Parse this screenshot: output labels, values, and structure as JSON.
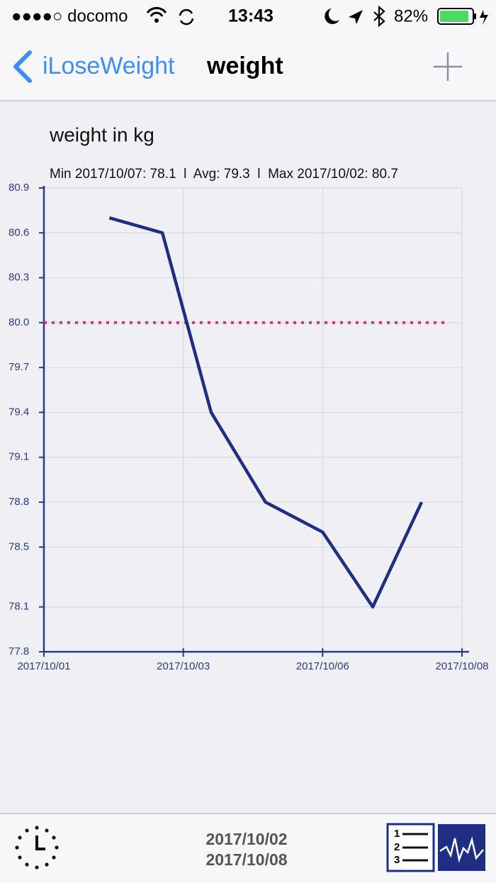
{
  "status_bar": {
    "carrier": "●●●●○ docomo",
    "time": "13:43",
    "battery": "82%"
  },
  "nav": {
    "back": "iLoseWeight",
    "title": "weight"
  },
  "chart_data": {
    "type": "line",
    "title": "weight in kg",
    "subtitle": "Min 2017/10/07: 78.1  l  Avg: 79.3  l  Max 2017/10/02: 80.7",
    "x": [
      0.47,
      0.85,
      1.2,
      1.59,
      2.0,
      2.36,
      2.71
    ],
    "series": [
      {
        "color": "#1f2d82",
        "values": [
          80.7,
          80.6,
          79.4,
          78.8,
          78.6,
          78.1,
          78.8
        ]
      }
    ],
    "xlim": [
      0,
      3
    ],
    "xticks": [
      {
        "value": 0,
        "label": "2017/10/01"
      },
      {
        "value": 1,
        "label": "2017/10/03"
      },
      {
        "value": 2,
        "label": "2017/10/06"
      },
      {
        "value": 3,
        "label": "2017/10/08"
      }
    ],
    "ylim": [
      77.8,
      80.9
    ],
    "yticks": [
      77.8,
      78.1,
      78.5,
      78.8,
      79.1,
      79.4,
      79.7,
      {
        "value": 80,
        "label": "80.0"
      },
      80.3,
      80.6,
      80.9
    ],
    "grid": true,
    "reference_line": {
      "value": 80,
      "color": "#e0307a"
    }
  },
  "footer": {
    "range": [
      "2017/10/02",
      "2017/10/08"
    ]
  }
}
